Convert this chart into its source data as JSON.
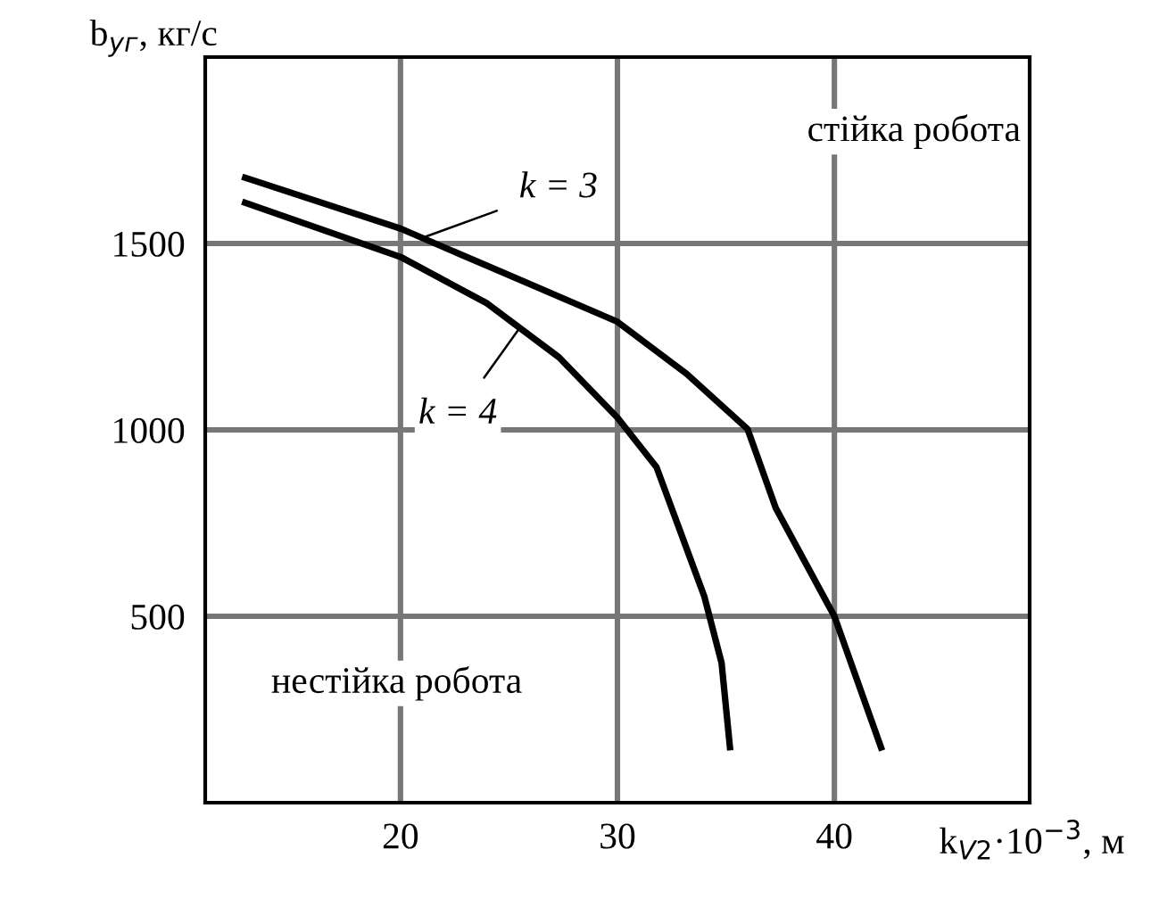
{
  "chart_data": {
    "type": "line",
    "xlabel": "k$_{V2}$·10$^{−3}$, м",
    "ylabel": "b$_{yг}$, кг/с",
    "xlim": [
      11,
      49
    ],
    "ylim": [
      0,
      2000
    ],
    "xticks": [
      20,
      30,
      40
    ],
    "yticks": [
      500,
      1000,
      1500
    ],
    "grid": true,
    "marker": "none",
    "line_style": "solid",
    "series": [
      {
        "color": "#000000",
        "x": [
          12.7,
          20,
          24.8,
          30,
          33.2,
          36,
          37.3,
          40,
          42.2
        ],
        "values": [
          1679,
          1540,
          1420,
          1290,
          1150,
          1002,
          790,
          500,
          140
        ]
      },
      {
        "color": "#000000",
        "x": [
          12.7,
          20,
          24,
          27.3,
          30,
          31.8,
          34,
          34.8,
          35.2
        ],
        "values": [
          1612,
          1464,
          1339,
          1195,
          1033,
          900,
          554,
          375,
          140
        ]
      }
    ],
    "annotations": [
      {
        "text": "k = 3",
        "x": 21,
        "y": 1515
      },
      {
        "text": "k = 4",
        "x": 25.5,
        "y": 1274
      },
      "стійка робота",
      "нестійка робота"
    ]
  }
}
